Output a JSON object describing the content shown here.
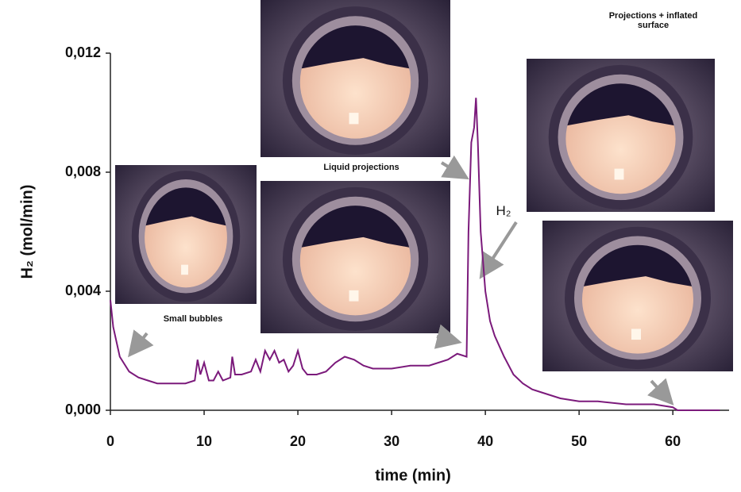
{
  "chart_data": {
    "type": "line",
    "x_label": "time (min)",
    "y_label": "H₂ (mol/min)",
    "annotations": [
      "Small bubbles",
      "Liquid projections",
      "Projections + inflated surface",
      "H₂"
    ],
    "xlim": [
      0,
      66
    ],
    "xticks": [
      0,
      10,
      20,
      30,
      40,
      50,
      60
    ],
    "ylim": [
      0,
      0.012
    ],
    "yticks": [
      {
        "value": 0,
        "label": "0,000"
      },
      {
        "value": 0.004,
        "label": "0,004"
      },
      {
        "value": 0.008,
        "label": "0,008"
      },
      {
        "value": 0.012,
        "label": "0,012"
      }
    ],
    "color": "#7b1a7b",
    "x": [
      0,
      0.3,
      1,
      2,
      3,
      4,
      5,
      6,
      7,
      8,
      9,
      9.3,
      9.6,
      10,
      10.5,
      11,
      11.5,
      12,
      12.8,
      13,
      13.3,
      14,
      15,
      15.5,
      16,
      16.5,
      17,
      17.5,
      18,
      18.5,
      19,
      19.5,
      20,
      20.5,
      21,
      22,
      23,
      24,
      25,
      26,
      27,
      28,
      30,
      32,
      34,
      36,
      37,
      38,
      38.2,
      38.5,
      38.8,
      39,
      39.2,
      39.5,
      40,
      40.5,
      41,
      42,
      43,
      44,
      45,
      46,
      48,
      50,
      52,
      55,
      58,
      60,
      60.5,
      62,
      65
    ],
    "values": [
      0.0037,
      0.0028,
      0.0018,
      0.0013,
      0.0011,
      0.001,
      0.0009,
      0.0009,
      0.0009,
      0.0009,
      0.001,
      0.0017,
      0.0012,
      0.0016,
      0.001,
      0.001,
      0.0013,
      0.001,
      0.0011,
      0.0018,
      0.0012,
      0.0012,
      0.0013,
      0.0017,
      0.0013,
      0.002,
      0.0017,
      0.002,
      0.0016,
      0.0017,
      0.0013,
      0.0015,
      0.002,
      0.0014,
      0.0012,
      0.0012,
      0.0013,
      0.0016,
      0.0018,
      0.0017,
      0.0015,
      0.0014,
      0.0014,
      0.0015,
      0.0015,
      0.0017,
      0.0019,
      0.0018,
      0.006,
      0.009,
      0.0095,
      0.0105,
      0.009,
      0.006,
      0.004,
      0.003,
      0.0025,
      0.0018,
      0.0012,
      0.0009,
      0.0007,
      0.0006,
      0.0004,
      0.0003,
      0.0003,
      0.0002,
      0.0002,
      0.0001,
      0,
      0,
      0
    ]
  }
}
